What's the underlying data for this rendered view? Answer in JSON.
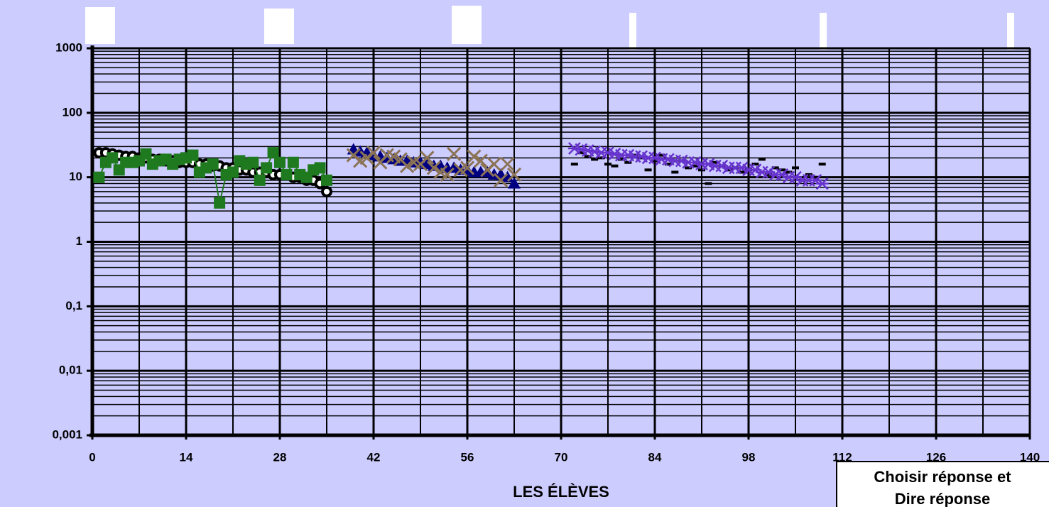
{
  "chart_data": {
    "type": "scatter",
    "x_label": "LES ÉLÈVES",
    "xlim": [
      0,
      140
    ],
    "xticks": [
      0,
      14,
      28,
      42,
      56,
      70,
      84,
      98,
      112,
      126,
      140
    ],
    "ylim": [
      0.001,
      1000
    ],
    "log_y": true,
    "yticks": [
      {
        "value": 0.001,
        "label": "0,001"
      },
      {
        "value": 0.01,
        "label": "0,01"
      },
      {
        "value": 0.1,
        "label": "0,1"
      },
      1,
      10,
      100,
      1000
    ],
    "grid": true,
    "series": [
      {
        "marker": "circle",
        "color": "#000000",
        "line": false,
        "x": [
          1,
          2,
          3,
          4,
          5,
          6,
          7,
          8,
          9,
          10,
          11,
          12,
          13,
          14,
          15,
          16,
          17,
          18,
          19,
          20,
          21,
          22,
          23,
          24,
          25,
          26,
          27,
          28,
          29,
          30,
          31,
          32,
          33,
          34,
          35
        ],
        "values": [
          24,
          24,
          23,
          22,
          21,
          21,
          20,
          20,
          19,
          19,
          18,
          18,
          17,
          17,
          17,
          16,
          16,
          15,
          15,
          14,
          14,
          13,
          13,
          12,
          12,
          12,
          11,
          11,
          11,
          10,
          10,
          9,
          9,
          8,
          6
        ]
      },
      {
        "marker": "square",
        "color": "#1f7a1f",
        "line": true,
        "x": [
          1,
          2,
          3,
          4,
          5,
          6,
          7,
          8,
          9,
          10,
          11,
          12,
          13,
          14,
          15,
          16,
          17,
          18,
          19,
          20,
          21,
          22,
          23,
          24,
          25,
          26,
          27,
          28,
          29,
          30,
          31,
          32,
          33,
          34,
          35
        ],
        "values": [
          10,
          17,
          20,
          13,
          17,
          17,
          18,
          23,
          16,
          18,
          19,
          16,
          19,
          20,
          22,
          12,
          14,
          16,
          4,
          11,
          12,
          18,
          16,
          17,
          9,
          14,
          24,
          17,
          11,
          17,
          11,
          10,
          13,
          14,
          9
        ]
      },
      {
        "marker": "triangle",
        "color": "#000080",
        "line": false,
        "x": [
          39,
          40,
          41,
          42,
          43,
          44,
          45,
          46,
          47,
          48,
          49,
          50,
          51,
          52,
          53,
          54,
          55,
          56,
          57,
          58,
          59,
          60,
          61,
          62,
          63
        ],
        "values": [
          27,
          25,
          24,
          22,
          21,
          20,
          19,
          18,
          18,
          17,
          17,
          16,
          15,
          15,
          14,
          14,
          13,
          13,
          12,
          12,
          12,
          11,
          11,
          10,
          8
        ]
      },
      {
        "marker": "x",
        "color": "#8b7355",
        "line": false,
        "x": [
          39,
          40,
          41,
          42,
          43,
          44,
          45,
          46,
          47,
          48,
          49,
          50,
          51,
          52,
          53,
          54,
          55,
          56,
          57,
          58,
          59,
          60,
          61,
          62,
          63
        ],
        "values": [
          22,
          18,
          20,
          24,
          17,
          22,
          21,
          19,
          15,
          17,
          16,
          20,
          14,
          12,
          11,
          23,
          13,
          14,
          21,
          18,
          13,
          16,
          9,
          16,
          11
        ]
      },
      {
        "marker": "dash",
        "color": "#000000",
        "line": false,
        "x": [
          72,
          73,
          74,
          75,
          76,
          77,
          78,
          79,
          80,
          81,
          82,
          83,
          84,
          85,
          86,
          87,
          88,
          89,
          90,
          91,
          92,
          93,
          94,
          95,
          96,
          97,
          98,
          99,
          100,
          101,
          102,
          103,
          104,
          105,
          106,
          107,
          108,
          109
        ],
        "values": [
          16,
          24,
          21,
          19,
          20,
          16,
          15,
          19,
          17,
          22,
          20,
          13,
          18,
          22,
          16,
          12,
          18,
          14,
          15,
          13,
          8,
          17,
          15,
          13,
          14,
          12,
          13,
          16,
          19,
          11,
          14,
          13,
          12,
          14,
          9,
          11,
          10,
          16
        ]
      },
      {
        "marker": "asterisk",
        "color": "#6633cc",
        "line": false,
        "x": [
          72,
          73,
          74,
          75,
          76,
          77,
          78,
          79,
          80,
          81,
          82,
          83,
          84,
          85,
          86,
          87,
          88,
          89,
          90,
          91,
          92,
          93,
          94,
          95,
          96,
          97,
          98,
          99,
          100,
          101,
          102,
          103,
          104,
          105,
          106,
          107,
          108,
          109
        ],
        "values": [
          28,
          27,
          26,
          25,
          24,
          24,
          23,
          22,
          22,
          21,
          21,
          20,
          20,
          19,
          19,
          18,
          18,
          17,
          17,
          16,
          16,
          15,
          15,
          14,
          14,
          14,
          13,
          13,
          12,
          12,
          11,
          11,
          10,
          10,
          9,
          9,
          9,
          8
        ]
      }
    ]
  },
  "button_text": [
    "Choisir réponse et",
    "Dire réponse"
  ]
}
